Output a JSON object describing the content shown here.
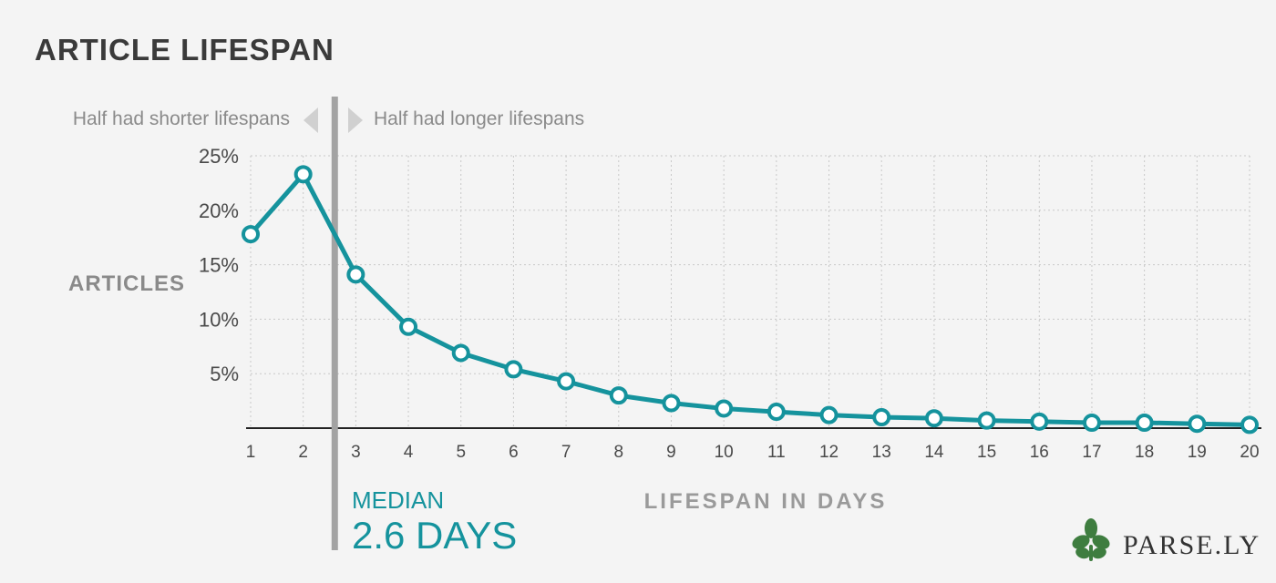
{
  "title": "ARTICLE LIFESPAN",
  "annotations": {
    "left_hint": "Half had shorter lifespans",
    "right_hint": "Half had longer lifespans",
    "median_label": "MEDIAN",
    "median_value": "2.6 DAYS"
  },
  "brand": {
    "name": "PARSE.LY",
    "icon": "parsley-leaf-icon"
  },
  "colors": {
    "series": "#15939d",
    "median_line": "#a3a3a3",
    "axis": "#222222",
    "grid": "#c8c8c8",
    "title": "#3a3a3a",
    "brand_leaf": "#3e7d3f"
  },
  "chart_data": {
    "type": "line",
    "title": "ARTICLE LIFESPAN",
    "xlabel": "LIFESPAN IN DAYS",
    "ylabel": "ARTICLES",
    "x": [
      1,
      2,
      3,
      4,
      5,
      6,
      7,
      8,
      9,
      10,
      11,
      12,
      13,
      14,
      15,
      16,
      17,
      18,
      19,
      20
    ],
    "x_tick_labels": [
      "1",
      "2",
      "3",
      "4",
      "5",
      "6",
      "7",
      "8",
      "9",
      "10",
      "11",
      "12",
      "13",
      "14",
      "15",
      "16",
      "17",
      "18",
      "19",
      "20"
    ],
    "y_ticks": [
      5,
      10,
      15,
      20,
      25
    ],
    "y_tick_labels": [
      "5%",
      "10%",
      "15%",
      "20%",
      "25%"
    ],
    "ylim": [
      0,
      25
    ],
    "xlim": [
      1,
      20
    ],
    "series": [
      {
        "values": [
          17.8,
          23.3,
          14.1,
          9.3,
          6.9,
          5.4,
          4.3,
          3.0,
          2.3,
          1.8,
          1.5,
          1.2,
          1.0,
          0.9,
          0.7,
          0.6,
          0.5,
          0.5,
          0.4,
          0.3
        ]
      }
    ],
    "median": 2.6,
    "grid": true,
    "legend": "none"
  }
}
